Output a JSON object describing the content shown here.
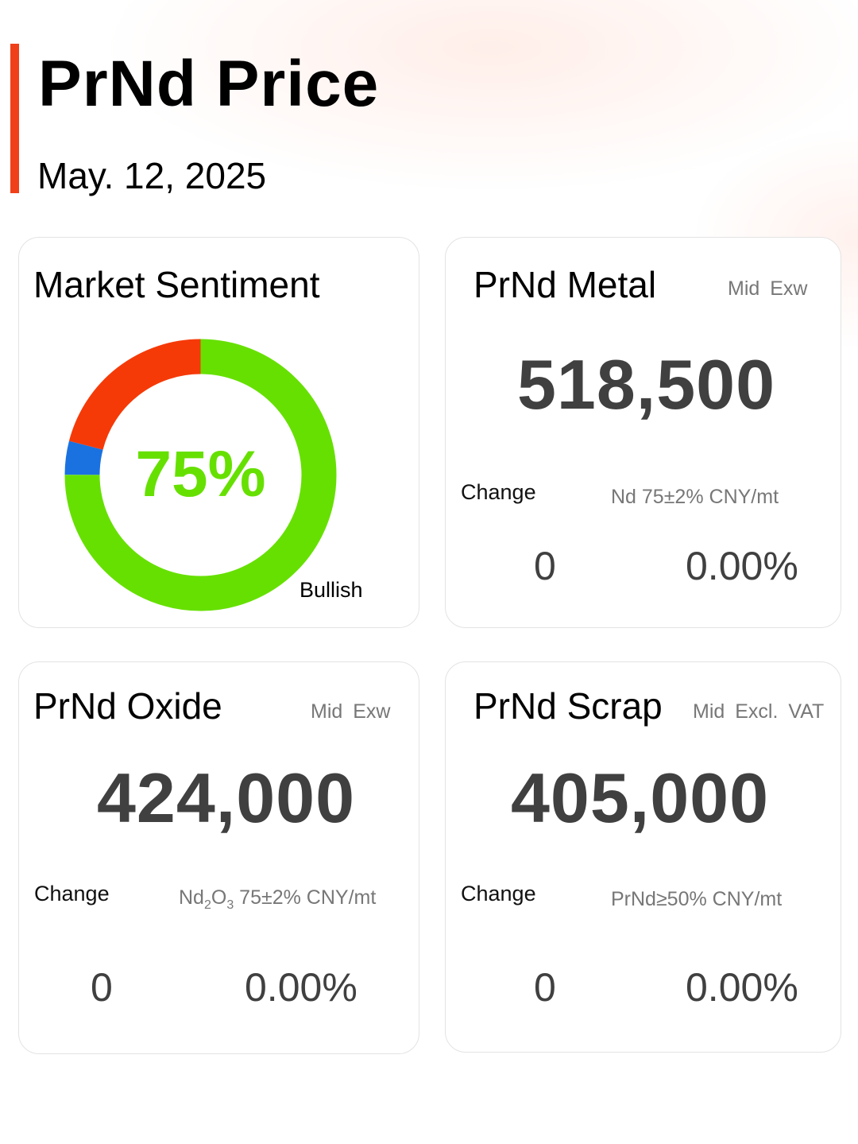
{
  "header": {
    "title": "PrNd Price",
    "date": "May. 12, 2025"
  },
  "colors": {
    "accent": "#f0401a",
    "bullish": "#66e000",
    "bearish": "#f53a08",
    "neutral": "#1a72e0"
  },
  "sentiment": {
    "title": "Market Sentiment",
    "percent_label": "75%",
    "label": "Bullish",
    "bullish_fraction": 0.75,
    "neutral_fraction": 0.04,
    "bearish_fraction": 0.21
  },
  "metal": {
    "title": "PrNd Metal",
    "mid": "Mid",
    "basis": "Exw",
    "price": "518,500",
    "change_label": "Change",
    "spec": "Nd 75±2% CNY/mt",
    "change": "0",
    "change_pct": "0.00%"
  },
  "oxide": {
    "title": "PrNd Oxide",
    "mid": "Mid",
    "basis": "Exw",
    "price": "424,000",
    "change_label": "Change",
    "spec_prefix": "Nd",
    "spec_sub1": "2",
    "spec_mid": "O",
    "spec_sub2": "3",
    "spec_suffix": " 75±2% CNY/mt",
    "change": "0",
    "change_pct": "0.00%"
  },
  "scrap": {
    "title": "PrNd Scrap",
    "mid": "Mid",
    "basis": "Excl. VAT",
    "price": "405,000",
    "change_label": "Change",
    "spec": "PrNd≥50% CNY/mt",
    "change": "0",
    "change_pct": "0.00%"
  }
}
